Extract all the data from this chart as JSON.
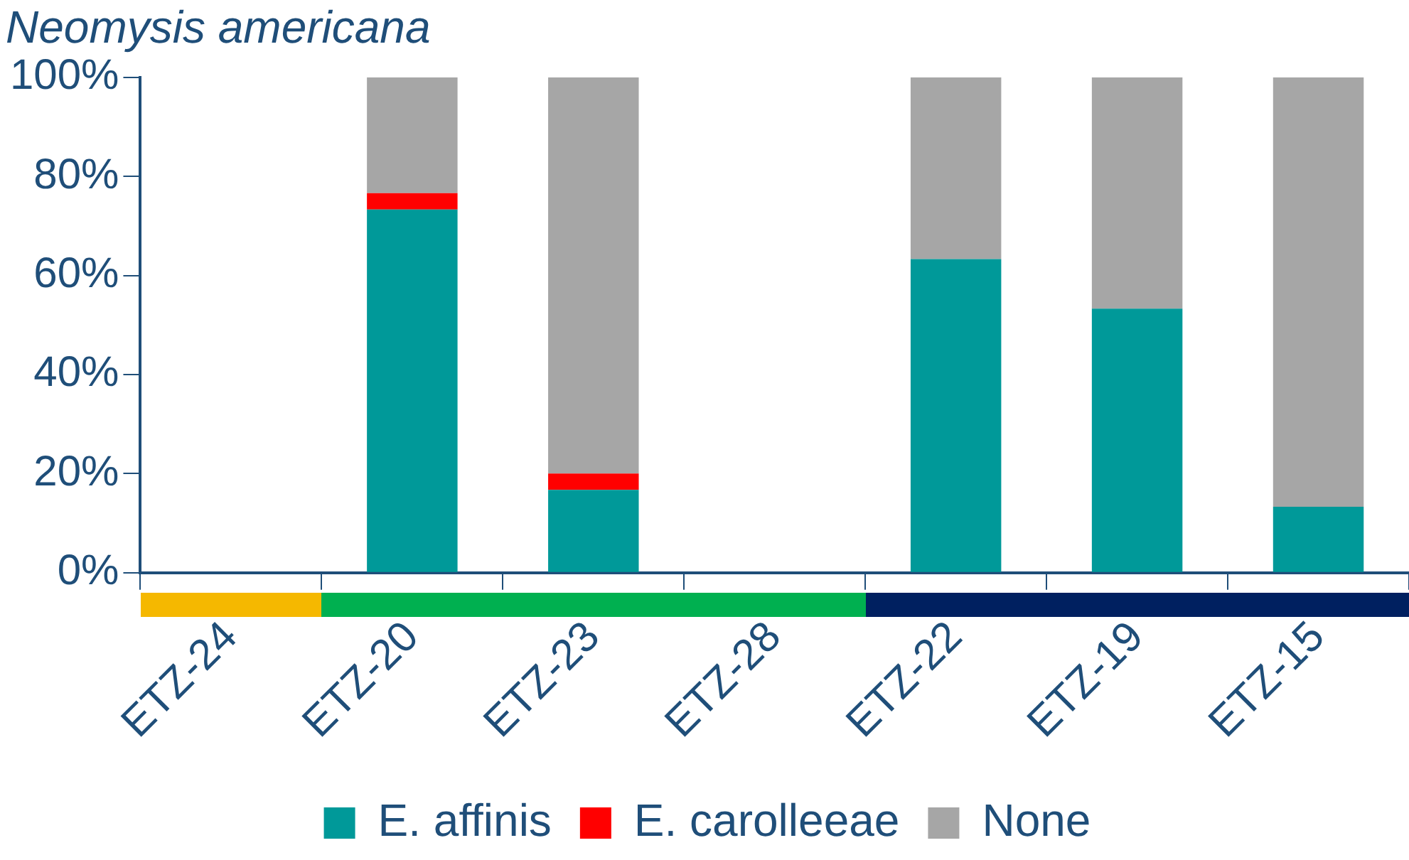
{
  "chart_data": {
    "type": "bar",
    "title": "Neomysis americana",
    "categories": [
      "ETZ-24",
      "ETZ-20",
      "ETZ-23",
      "ETZ-28",
      "ETZ-22",
      "ETZ-19",
      "ETZ-15"
    ],
    "stacked": true,
    "legend": "bottom",
    "grid": false,
    "series": [
      {
        "name": "E. affinis",
        "color": "#009999",
        "values": [
          null,
          73.3,
          16.7,
          null,
          63.3,
          53.3,
          13.3
        ]
      },
      {
        "name": "E. carolleeae",
        "color": "#ff0000",
        "values": [
          null,
          3.3,
          3.3,
          null,
          null,
          null,
          null
        ]
      },
      {
        "name": "None",
        "color": "#a6a6a6",
        "values": [
          null,
          23.4,
          80,
          null,
          36.7,
          46.7,
          86.7
        ]
      }
    ],
    "ylim": [
      0,
      100
    ],
    "yticks": [
      {
        "value": 0,
        "label": "0%"
      },
      {
        "value": 20,
        "label": "20%"
      },
      {
        "value": 40,
        "label": "40%"
      },
      {
        "value": 60,
        "label": "60%"
      },
      {
        "value": 80,
        "label": "80%"
      },
      {
        "value": 100,
        "label": "100%"
      }
    ]
  }
}
